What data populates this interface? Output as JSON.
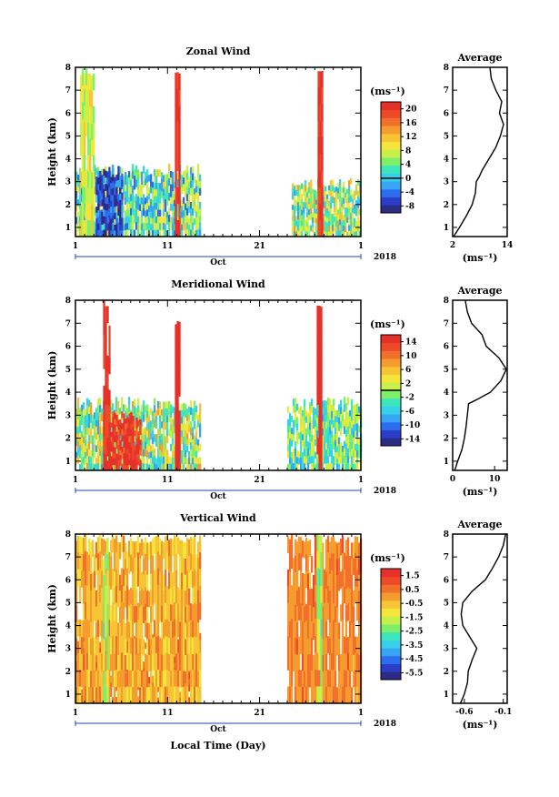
{
  "figure": {
    "x_common": {
      "date_labels": [
        "1",
        "11",
        "21",
        "1"
      ],
      "month_label": "Oct",
      "year_label": "2018",
      "xlabel": "Local Time (Day)"
    },
    "ylabel": "Height (km)",
    "avg_title": "Average",
    "unit_label": "(ms⁻¹)",
    "avg_xlabel": "(ms⁻¹)"
  },
  "colormap": [
    "#2c2c86",
    "#2a3ec8",
    "#2d6ef0",
    "#36a6f3",
    "#38d0e8",
    "#3ee6be",
    "#7fee6a",
    "#c8f04a",
    "#f3e53a",
    "#f6c435",
    "#f59c2e",
    "#f2702b",
    "#ee4a2a",
    "#e6312a"
  ],
  "chart_data": [
    {
      "type": "heatmap",
      "title": "Zonal Wind",
      "ylabel": "Height (km)",
      "yticks": [
        1,
        2,
        3,
        4,
        5,
        6,
        7,
        8
      ],
      "ylim": [
        0.6,
        8
      ],
      "xlim_day": [
        1,
        32
      ],
      "colorbar": {
        "ticks": [
          -8,
          -4,
          0,
          4,
          8,
          12,
          16,
          20
        ],
        "min": -10,
        "max": 22,
        "zero_line": 0
      },
      "data_blocks": [
        {
          "d0": 1,
          "d1": 14.5,
          "h_top": 3.8,
          "mean": 3,
          "spread": 8
        },
        {
          "d0": 1.5,
          "d1": 3,
          "h_top": 8,
          "mean": 8,
          "spread": 4
        },
        {
          "d0": 3.2,
          "d1": 6,
          "h_top": 3.8,
          "mean": -6,
          "spread": 4
        },
        {
          "d0": 11.8,
          "d1": 12.3,
          "h_top": 8,
          "mean": 20,
          "spread": 1
        },
        {
          "d0": 24.5,
          "d1": 32,
          "h_top": 3.2,
          "mean": 6,
          "spread": 8
        },
        {
          "d0": 27.3,
          "d1": 27.8,
          "h_top": 8,
          "mean": 20,
          "spread": 1
        }
      ],
      "average_profile": {
        "xlim": [
          2,
          14
        ],
        "xticks": [
          2,
          14
        ],
        "height": [
          0.6,
          1,
          1.5,
          2,
          2.5,
          3,
          3.2,
          3.5,
          4,
          4.5,
          5,
          5.5,
          6,
          6.5,
          7,
          7.5,
          8
        ],
        "value": [
          2.2,
          3.5,
          5,
          6.3,
          7,
          7.2,
          7.8,
          8.5,
          10,
          11.5,
          12.5,
          13.2,
          12.3,
          12.8,
          11.5,
          10.5,
          10.2
        ]
      }
    },
    {
      "type": "heatmap",
      "title": "Meridional Wind",
      "ylabel": "Height (km)",
      "yticks": [
        1,
        2,
        3,
        4,
        5,
        6,
        7,
        8
      ],
      "ylim": [
        0.6,
        8
      ],
      "xlim_day": [
        1,
        32
      ],
      "colorbar": {
        "ticks": [
          -14,
          -10,
          -6,
          -2,
          2,
          6,
          10,
          14
        ],
        "min": -16,
        "max": 16,
        "zero_line": 0
      },
      "data_blocks": [
        {
          "d0": 1,
          "d1": 14.5,
          "h_top": 3.8,
          "mean": 0,
          "spread": 8
        },
        {
          "d0": 4,
          "d1": 8,
          "h_top": 3.2,
          "mean": 14,
          "spread": 3
        },
        {
          "d0": 4,
          "d1": 4.6,
          "h_top": 8,
          "mean": 14,
          "spread": 2
        },
        {
          "d0": 11.8,
          "d1": 12.3,
          "h_top": 7.2,
          "mean": 15,
          "spread": 1
        },
        {
          "d0": 24,
          "d1": 32,
          "h_top": 3.8,
          "mean": -2,
          "spread": 6
        },
        {
          "d0": 27.2,
          "d1": 27.7,
          "h_top": 8,
          "mean": 15,
          "spread": 1
        }
      ],
      "average_profile": {
        "xlim": [
          0,
          13
        ],
        "xticks": [
          0,
          10
        ],
        "height": [
          0.6,
          1,
          1.5,
          2,
          2.5,
          3,
          3.5,
          3.7,
          4,
          4.5,
          5,
          5.5,
          6,
          6.5,
          7,
          7.5,
          8
        ],
        "value": [
          0.5,
          1.2,
          2.2,
          2.8,
          3.2,
          3.5,
          3.8,
          6,
          9,
          11.5,
          12.8,
          11,
          8,
          7,
          4.5,
          3.5,
          3
        ]
      }
    },
    {
      "type": "heatmap",
      "title": "Vertical Wind",
      "ylabel": "Height (km)",
      "yticks": [
        1,
        2,
        3,
        4,
        5,
        6,
        7,
        8
      ],
      "ylim": [
        0.6,
        8
      ],
      "xlim_day": [
        1,
        32
      ],
      "colorbar": {
        "ticks": [
          -5.5,
          -4.5,
          -3.5,
          -2.5,
          -1.5,
          -0.5,
          0.5,
          1.5
        ],
        "min": -6,
        "max": 2,
        "zero_line": null
      },
      "data_blocks": [
        {
          "d0": 1,
          "d1": 14.5,
          "h_top": 3.7,
          "mean": 0.6,
          "spread": 0.5
        },
        {
          "d0": 1,
          "d1": 14.5,
          "h_top": 8,
          "mean": -0.3,
          "spread": 0.8
        },
        {
          "d0": 4,
          "d1": 4.5,
          "h_top": 8,
          "mean": -2,
          "spread": 0.8
        },
        {
          "d0": 24,
          "d1": 32,
          "h_top": 8,
          "mean": 0.3,
          "spread": 0.6
        },
        {
          "d0": 27.2,
          "d1": 27.7,
          "h_top": 8,
          "mean": -1.8,
          "spread": 0.8
        }
      ],
      "average_profile": {
        "xlim": [
          -0.75,
          -0.05
        ],
        "xticks": [
          -0.6,
          -0.1
        ],
        "height": [
          0.6,
          1,
          1.5,
          2,
          2.5,
          3,
          3.5,
          4,
          4.5,
          5,
          5.5,
          6,
          6.5,
          7,
          7.5,
          8
        ],
        "value": [
          -0.65,
          -0.6,
          -0.56,
          -0.55,
          -0.5,
          -0.44,
          -0.53,
          -0.62,
          -0.64,
          -0.62,
          -0.5,
          -0.33,
          -0.24,
          -0.16,
          -0.1,
          -0.07
        ]
      }
    }
  ]
}
